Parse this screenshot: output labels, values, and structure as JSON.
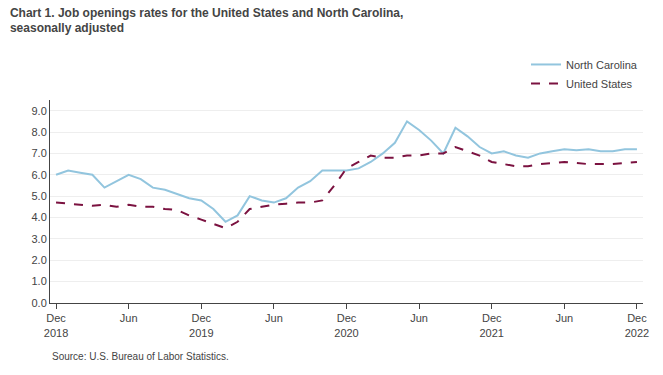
{
  "chart_data": {
    "type": "line",
    "title": "Chart 1. Job openings rates for the United States and North Carolina,\nseasonally adjusted",
    "annotations": [
      "Source: U.S. Bureau of Labor Statistics."
    ],
    "categories": [
      "Dec\n2018",
      null,
      null,
      null,
      null,
      null,
      "Jun",
      null,
      null,
      null,
      null,
      null,
      "Dec\n2019",
      null,
      null,
      null,
      null,
      null,
      "Jun",
      null,
      null,
      null,
      null,
      null,
      "Dec\n2020",
      null,
      null,
      null,
      null,
      null,
      "Jun",
      null,
      null,
      null,
      null,
      null,
      "Dec\n2021",
      null,
      null,
      null,
      null,
      null,
      "Jun",
      null,
      null,
      null,
      null,
      null,
      "Dec\n2022"
    ],
    "series": [
      {
        "name": "North Carolina",
        "color": "#92c5de",
        "line_style": "solid",
        "values": [
          6.0,
          6.2,
          6.1,
          6.0,
          5.4,
          5.7,
          6.0,
          5.8,
          5.4,
          5.3,
          5.1,
          4.9,
          4.8,
          4.4,
          3.8,
          4.1,
          5.0,
          4.8,
          4.7,
          4.9,
          5.4,
          5.7,
          6.2,
          6.2,
          6.2,
          6.3,
          6.6,
          7.0,
          7.5,
          8.5,
          8.1,
          7.6,
          7.0,
          8.2,
          7.8,
          7.3,
          7.0,
          7.1,
          6.9,
          6.8,
          7.0,
          7.1,
          7.2,
          7.15,
          7.2,
          7.1,
          7.1,
          7.2,
          7.2
        ]
      },
      {
        "name": "United States",
        "color": "#7b1240",
        "line_style": "dashed",
        "values": [
          4.7,
          4.65,
          4.6,
          4.55,
          4.6,
          4.5,
          4.6,
          4.5,
          4.5,
          4.4,
          4.35,
          4.1,
          3.9,
          3.7,
          3.5,
          3.8,
          4.4,
          4.5,
          4.6,
          4.65,
          4.7,
          4.7,
          4.8,
          5.5,
          6.3,
          6.6,
          6.9,
          6.8,
          6.8,
          6.9,
          6.9,
          7.0,
          7.0,
          7.3,
          7.1,
          6.9,
          6.6,
          6.5,
          6.4,
          6.4,
          6.5,
          6.55,
          6.6,
          6.55,
          6.5,
          6.5,
          6.5,
          6.55,
          6.6
        ]
      }
    ],
    "ylim": [
      0.0,
      9.5
    ],
    "yticks": [
      {
        "value": 0.0,
        "label": "0.0"
      },
      {
        "value": 1.0,
        "label": "1.0"
      },
      {
        "value": 2.0,
        "label": "2.0"
      },
      {
        "value": 3.0,
        "label": "3.0"
      },
      {
        "value": 4.0,
        "label": "4.0"
      },
      {
        "value": 5.0,
        "label": "5.0"
      },
      {
        "value": 6.0,
        "label": "6.0"
      },
      {
        "value": 7.0,
        "label": "7.0"
      },
      {
        "value": 8.0,
        "label": "8.0"
      },
      {
        "value": 9.0,
        "label": "9.0"
      }
    ],
    "grid": true,
    "legend": "upper right"
  }
}
